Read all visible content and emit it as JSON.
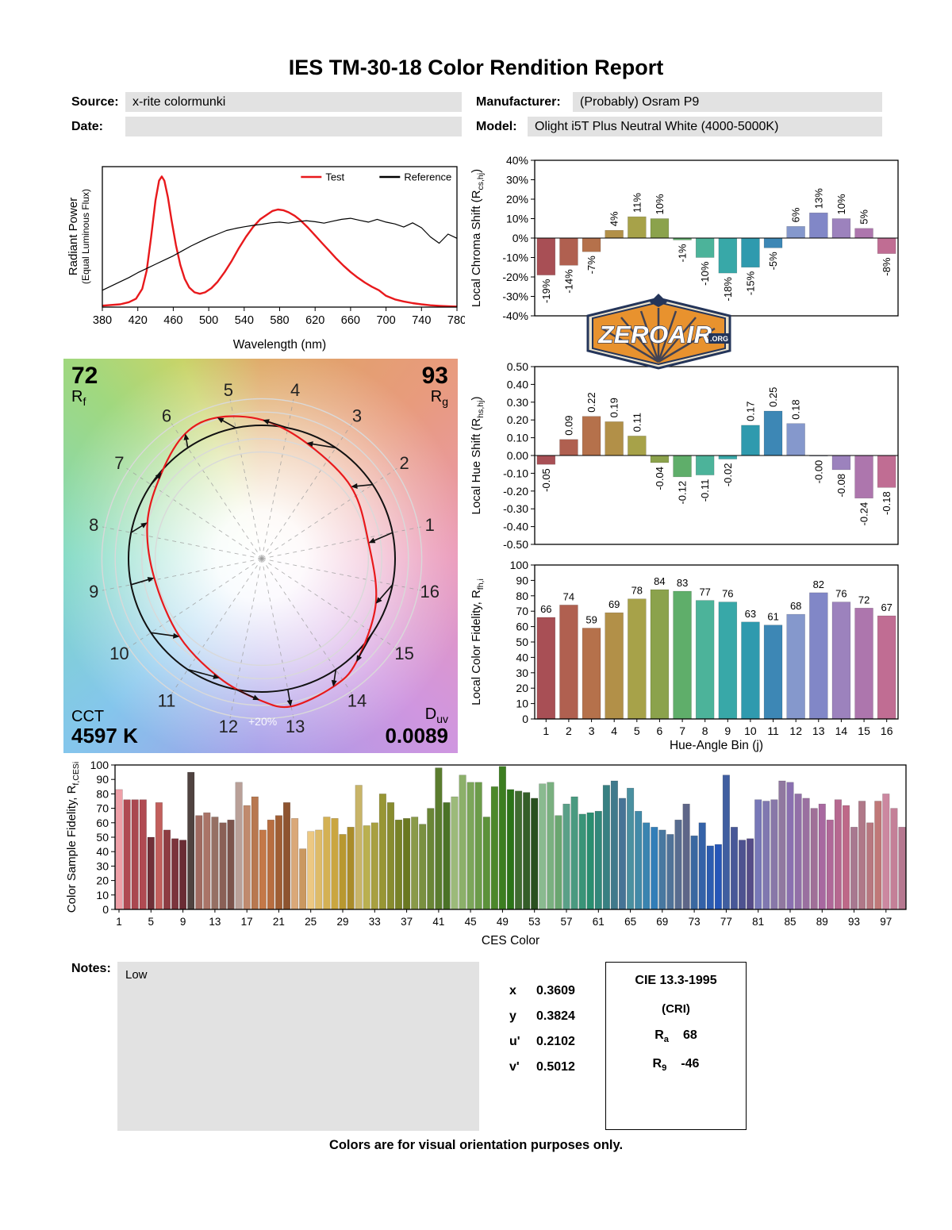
{
  "title": "IES TM-30-18 Color Rendition Report",
  "header": {
    "source": {
      "label": "Source:",
      "value": "x-rite colormunki"
    },
    "date": {
      "label": "Date:",
      "value": ""
    },
    "manufacturer": {
      "label": "Manufacturer:",
      "value": "(Probably) Osram P9"
    },
    "model": {
      "label": "Model:",
      "value": "Olight i5T Plus Neutral White (4000-5000K)"
    }
  },
  "logo": {
    "text": "ZEROAIR",
    "suffix": ".ORG",
    "badge_color": "#e8922e",
    "outline_color": "#24355a"
  },
  "cvg": {
    "rf_value": "72",
    "rf_label_base": "R",
    "rf_label_sub": "f",
    "rg_value": "93",
    "rg_label_base": "R",
    "rg_label_sub": "g",
    "cct_label": "CCT",
    "cct_value": "4597 K",
    "duv_label_base": "D",
    "duv_label_sub": "uv",
    "duv_value": "0.0089",
    "ring_label": "+20%",
    "test_color": "#e8191c",
    "reference_color": "#111111"
  },
  "bin_colors": [
    "#a84f55",
    "#b06050",
    "#b5714b",
    "#b29048",
    "#a7a249",
    "#8ba24c",
    "#5fae6a",
    "#4cb39a",
    "#38a8a8",
    "#2f9aae",
    "#3d87b5",
    "#8598cc",
    "#8187c7",
    "#9c82bd",
    "#ad76ad",
    "#c06d93"
  ],
  "chart_data": [
    {
      "id": "spd",
      "type": "line",
      "xlabel": "Wavelength (nm)",
      "ylabel_line1": "Radiant Power",
      "ylabel_line2": "(Equal Luminous Flux)",
      "xlim": [
        380,
        780
      ],
      "ylim": [
        0,
        1.0
      ],
      "xticks": [
        380,
        420,
        460,
        500,
        540,
        580,
        620,
        660,
        700,
        740,
        780
      ],
      "legend": [
        {
          "name": "Test",
          "color": "#e8191c"
        },
        {
          "name": "Reference",
          "color": "#000000"
        }
      ],
      "series": [
        {
          "name": "Test",
          "color": "#e8191c",
          "width": 2.4,
          "points": [
            [
              380,
              0.01
            ],
            [
              400,
              0.02
            ],
            [
              410,
              0.035
            ],
            [
              418,
              0.06
            ],
            [
              425,
              0.13
            ],
            [
              430,
              0.26
            ],
            [
              435,
              0.5
            ],
            [
              440,
              0.76
            ],
            [
              444,
              0.9
            ],
            [
              447,
              0.93
            ],
            [
              450,
              0.9
            ],
            [
              454,
              0.78
            ],
            [
              458,
              0.62
            ],
            [
              463,
              0.44
            ],
            [
              468,
              0.3
            ],
            [
              473,
              0.2
            ],
            [
              478,
              0.14
            ],
            [
              484,
              0.105
            ],
            [
              490,
              0.095
            ],
            [
              496,
              0.105
            ],
            [
              503,
              0.135
            ],
            [
              510,
              0.18
            ],
            [
              518,
              0.25
            ],
            [
              526,
              0.33
            ],
            [
              534,
              0.42
            ],
            [
              542,
              0.5
            ],
            [
              550,
              0.57
            ],
            [
              558,
              0.625
            ],
            [
              566,
              0.66
            ],
            [
              572,
              0.685
            ],
            [
              578,
              0.695
            ],
            [
              584,
              0.69
            ],
            [
              590,
              0.675
            ],
            [
              597,
              0.65
            ],
            [
              604,
              0.615
            ],
            [
              612,
              0.565
            ],
            [
              620,
              0.51
            ],
            [
              628,
              0.455
            ],
            [
              636,
              0.4
            ],
            [
              644,
              0.345
            ],
            [
              652,
              0.295
            ],
            [
              660,
              0.25
            ],
            [
              668,
              0.21
            ],
            [
              676,
              0.175
            ],
            [
              684,
              0.145
            ],
            [
              692,
              0.12
            ],
            [
              700,
              0.08
            ],
            [
              710,
              0.055
            ],
            [
              720,
              0.04
            ],
            [
              730,
              0.028
            ],
            [
              740,
              0.02
            ],
            [
              750,
              0.013
            ],
            [
              760,
              0.009
            ],
            [
              770,
              0.006
            ],
            [
              780,
              0.004
            ]
          ]
        },
        {
          "name": "Reference",
          "color": "#000000",
          "width": 1.2,
          "points": [
            [
              380,
              0.12
            ],
            [
              390,
              0.15
            ],
            [
              400,
              0.18
            ],
            [
              410,
              0.21
            ],
            [
              420,
              0.245
            ],
            [
              430,
              0.275
            ],
            [
              440,
              0.305
            ],
            [
              450,
              0.335
            ],
            [
              460,
              0.365
            ],
            [
              470,
              0.4
            ],
            [
              480,
              0.435
            ],
            [
              490,
              0.465
            ],
            [
              500,
              0.495
            ],
            [
              510,
              0.52
            ],
            [
              520,
              0.545
            ],
            [
              530,
              0.56
            ],
            [
              540,
              0.572
            ],
            [
              550,
              0.582
            ],
            [
              560,
              0.59
            ],
            [
              570,
              0.6
            ],
            [
              580,
              0.605
            ],
            [
              590,
              0.598
            ],
            [
              600,
              0.608
            ],
            [
              610,
              0.615
            ],
            [
              620,
              0.608
            ],
            [
              630,
              0.598
            ],
            [
              640,
              0.612
            ],
            [
              650,
              0.625
            ],
            [
              660,
              0.632
            ],
            [
              670,
              0.618
            ],
            [
              680,
              0.605
            ],
            [
              690,
              0.625
            ],
            [
              700,
              0.605
            ],
            [
              710,
              0.592
            ],
            [
              720,
              0.57
            ],
            [
              730,
              0.6
            ],
            [
              740,
              0.565
            ],
            [
              750,
              0.5
            ],
            [
              760,
              0.455
            ],
            [
              770,
              0.52
            ],
            [
              780,
              0.49
            ]
          ]
        }
      ]
    },
    {
      "id": "chroma_shift",
      "type": "bar",
      "ylabel_pre": "Local Chroma Shift (R",
      "ylabel_sub": "cs,hj",
      "ylabel_post": ")",
      "ylim": [
        -40,
        40
      ],
      "ytick_values": [
        40,
        30,
        20,
        10,
        0,
        -10,
        -20,
        -30,
        -40
      ],
      "ytick_labels": [
        "40%",
        "30%",
        "20%",
        "10%",
        "0%",
        "-10%",
        "-20%",
        "-30%",
        "-40%"
      ],
      "categories": [
        1,
        2,
        3,
        4,
        5,
        6,
        7,
        8,
        9,
        10,
        11,
        12,
        13,
        14,
        15,
        16
      ],
      "values": [
        -19,
        -14,
        -7,
        4,
        11,
        10,
        -1,
        -10,
        -18,
        -15,
        -5,
        6,
        13,
        10,
        5,
        -8
      ],
      "value_labels": [
        "-19%",
        "-14%",
        "-7%",
        "4%",
        "11%",
        "10%",
        "-1%",
        "-10%",
        "-18%",
        "-15%",
        "-5%",
        "6%",
        "13%",
        "10%",
        "5%",
        "-8%"
      ]
    },
    {
      "id": "hue_shift",
      "type": "bar",
      "ylabel_pre": "Local Hue Shift (R",
      "ylabel_sub": "hs,hj",
      "ylabel_post": ")",
      "ylim": [
        -0.5,
        0.5
      ],
      "ytick_values": [
        0.5,
        0.4,
        0.3,
        0.2,
        0.1,
        0,
        -0.1,
        -0.2,
        -0.3,
        -0.4,
        -0.5
      ],
      "ytick_labels": [
        "0.50",
        "0.40",
        "0.30",
        "0.20",
        "0.10",
        "0.00",
        "-0.10",
        "-0.20",
        "-0.30",
        "-0.40",
        "-0.50"
      ],
      "categories": [
        1,
        2,
        3,
        4,
        5,
        6,
        7,
        8,
        9,
        10,
        11,
        12,
        13,
        14,
        15,
        16
      ],
      "values": [
        -0.05,
        0.09,
        0.22,
        0.19,
        0.11,
        -0.04,
        -0.12,
        -0.11,
        -0.02,
        0.17,
        0.25,
        0.18,
        -0.003,
        -0.08,
        -0.24,
        -0.18
      ],
      "value_labels": [
        "-0.05",
        "0.09",
        "0.22",
        "0.19",
        "0.11",
        "-0.04",
        "-0.12",
        "-0.11",
        "-0.02",
        "0.17",
        "0.25",
        "0.18",
        "-0.00",
        "-0.08",
        "-0.24",
        "-0.18"
      ]
    },
    {
      "id": "local_fidelity",
      "type": "bar",
      "ylabel_pre": "Local Color Fidelity, R",
      "ylabel_sub": "fh,i",
      "ylabel_post": "",
      "xlabel": "Hue-Angle Bin (j)",
      "ylim": [
        0,
        100
      ],
      "ytick_values": [
        100,
        90,
        80,
        70,
        60,
        50,
        40,
        30,
        20,
        10,
        0
      ],
      "ytick_labels": [
        "100",
        "90",
        "80",
        "70",
        "60",
        "50",
        "40",
        "30",
        "20",
        "10",
        "0"
      ],
      "categories": [
        1,
        2,
        3,
        4,
        5,
        6,
        7,
        8,
        9,
        10,
        11,
        12,
        13,
        14,
        15,
        16
      ],
      "values": [
        66,
        74,
        59,
        69,
        78,
        84,
        83,
        77,
        76,
        63,
        61,
        68,
        82,
        76,
        72,
        67
      ],
      "value_labels": [
        "66",
        "74",
        "59",
        "69",
        "78",
        "84",
        "83",
        "77",
        "76",
        "63",
        "61",
        "68",
        "82",
        "76",
        "72",
        "67"
      ]
    },
    {
      "id": "ces",
      "type": "bar",
      "ylabel_pre": "Color Sample Fidelity, R",
      "ylabel_sub": "f,CESi",
      "ylabel_post": "",
      "xlabel": "CES Color",
      "ylim": [
        0,
        100
      ],
      "ytick_values": [
        100,
        90,
        80,
        70,
        60,
        50,
        40,
        30,
        20,
        10,
        0
      ],
      "ytick_labels": [
        "100",
        "90",
        "80",
        "70",
        "60",
        "50",
        "40",
        "30",
        "20",
        "10",
        "0"
      ],
      "xtick_labels": [
        1,
        5,
        9,
        13,
        17,
        21,
        25,
        29,
        33,
        37,
        41,
        45,
        49,
        53,
        57,
        61,
        65,
        69,
        73,
        77,
        81,
        85,
        89,
        93,
        97
      ],
      "values": [
        83,
        76,
        76,
        76,
        50,
        74,
        55,
        49,
        48,
        95,
        65,
        67,
        64,
        60,
        62,
        88,
        72,
        78,
        55,
        62,
        65,
        74,
        63,
        42,
        54,
        55,
        64,
        63,
        52,
        57,
        86,
        58,
        60,
        80,
        74,
        62,
        63,
        64,
        59,
        70,
        98,
        74,
        78,
        93,
        88,
        88,
        64,
        85,
        99,
        83,
        82,
        81,
        77,
        87,
        88,
        65,
        73,
        78,
        66,
        67,
        68,
        86,
        89,
        77,
        84,
        68,
        60,
        57,
        55,
        52,
        62,
        73,
        51,
        60,
        44,
        45,
        93,
        57,
        48,
        49,
        76,
        75,
        76,
        89,
        88,
        80,
        77,
        70,
        73,
        62,
        76,
        72,
        57,
        75,
        60,
        75,
        80,
        70,
        57
      ],
      "colors": [
        "#efa0a8",
        "#b04a52",
        "#aa4850",
        "#b04a52",
        "#703038",
        "#c25f5c",
        "#8e3c42",
        "#7c343c",
        "#6a2c34",
        "#504340",
        "#a06a60",
        "#aa7468",
        "#967064",
        "#8a6056",
        "#7c544c",
        "#b9a098",
        "#c08a6e",
        "#b87850",
        "#c47848",
        "#b86e40",
        "#a05e34",
        "#8e5430",
        "#daa878",
        "#ca9860",
        "#ecc882",
        "#debb68",
        "#d4b154",
        "#caa640",
        "#b89830",
        "#aa8c2a",
        "#c8b468",
        "#bab050",
        "#a8a040",
        "#989634",
        "#888c2e",
        "#788226",
        "#6a7820",
        "#8a9a48",
        "#7a9040",
        "#6a8636",
        "#5a7c2e",
        "#4a7226",
        "#9cba7a",
        "#8cb06a",
        "#7ca65a",
        "#6c9c4a",
        "#5c923a",
        "#4c882a",
        "#3c7e20",
        "#2c7418",
        "#406c30",
        "#345e28",
        "#2a5020",
        "#8aba90",
        "#7ab080",
        "#6aa670",
        "#5aa088",
        "#4a9a80",
        "#3a9478",
        "#2a8e70",
        "#32887a",
        "#388082",
        "#407a8c",
        "#467496",
        "#4a90a0",
        "#428aa8",
        "#3a84b0",
        "#327eb8",
        "#4878a0",
        "#507298",
        "#586c90",
        "#5e6688",
        "#3a68a0",
        "#3462a8",
        "#2c5cb0",
        "#2656b8",
        "#405ea0",
        "#485898",
        "#4e5290",
        "#564c88",
        "#7878b8",
        "#8078b0",
        "#8878a8",
        "#9078a0",
        "#8a70b0",
        "#9270a8",
        "#9a70a0",
        "#a07098",
        "#a868a0",
        "#b06898",
        "#b66890",
        "#be6888",
        "#a87890",
        "#b07888",
        "#b87880",
        "#c07878",
        "#cc88a0",
        "#c48098",
        "#b67890"
      ]
    }
  ],
  "chromaticity": {
    "rows": [
      {
        "label": "x",
        "value": "0.3609"
      },
      {
        "label": "y",
        "value": "0.3824"
      },
      {
        "label": "u'",
        "value": "0.2102"
      },
      {
        "label": "v'",
        "value": "0.5012"
      }
    ]
  },
  "cri": {
    "title": "CIE 13.3-1995",
    "subtitle": "(CRI)",
    "rows": [
      {
        "base": "R",
        "sub": "a",
        "value": "68"
      },
      {
        "base": "R",
        "sub": "9",
        "value": "-46"
      }
    ]
  },
  "notes": {
    "label": "Notes:",
    "value": "Low"
  },
  "footer": "Colors are for visual orientation purposes only."
}
